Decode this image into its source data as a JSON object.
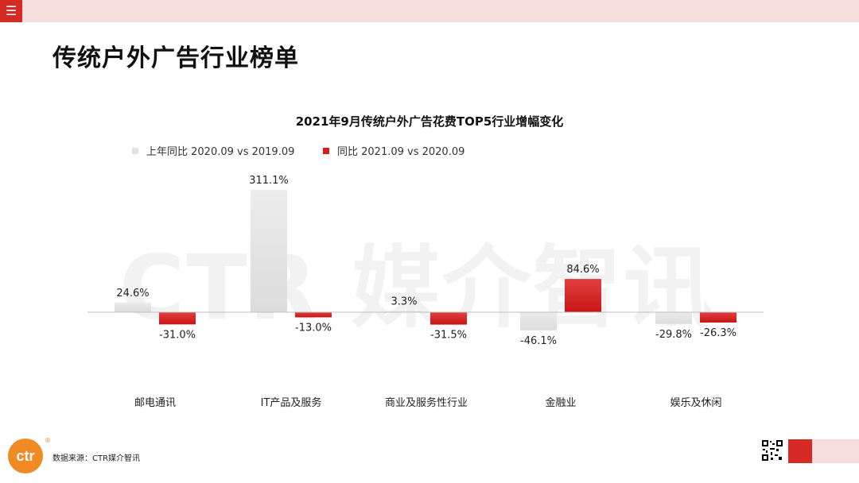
{
  "page": {
    "title": "传统户外广告行业榜单",
    "menu_icon": "☰"
  },
  "watermark": {
    "text": "CTR 媒介智讯"
  },
  "chart_data": {
    "type": "bar",
    "title": "2021年9月传统户外广告花费TOP5行业增幅变化",
    "categories": [
      "邮电通讯",
      "IT产品及服务",
      "商业及服务性行业",
      "金融业",
      "娱乐及休闲"
    ],
    "series": [
      {
        "name": "上年同比 2020.09 vs 2019.09",
        "color": "#e3e3e3",
        "values": [
          24.6,
          311.1,
          3.3,
          -46.1,
          -29.8
        ],
        "labels": [
          "24.6%",
          "311.1%",
          "3.3%",
          "-46.1%",
          "-29.8%"
        ]
      },
      {
        "name": "同比 2021.09 vs 2020.09",
        "color": "#d41f1f",
        "values": [
          -31.0,
          -13.0,
          -31.5,
          84.6,
          -26.3
        ],
        "labels": [
          "-31.0%",
          "-13.0%",
          "-31.5%",
          "84.6%",
          "-26.3%"
        ]
      }
    ],
    "legend_position": "top-left"
  },
  "footer": {
    "logo_text": "ctr",
    "registered": "®",
    "source": "数据来源：CTR媒介智讯"
  },
  "colors": {
    "brand_red": "#d62b24",
    "brand_pink": "#f9dede",
    "logo_orange": "#f08a24"
  }
}
